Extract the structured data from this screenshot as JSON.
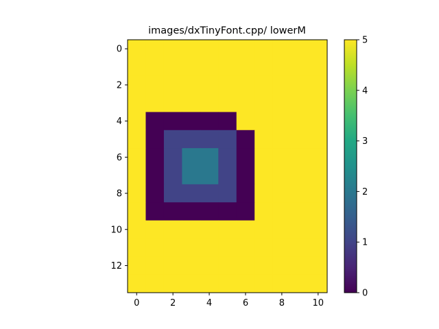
{
  "chart_data": {
    "type": "heatmap",
    "title": "images/dxTinyFont.cpp/ lowerM",
    "xlabel": "",
    "ylabel": "",
    "n_cols": 11,
    "n_rows": 14,
    "x_ticks": [
      0,
      2,
      4,
      6,
      8,
      10
    ],
    "y_ticks": [
      0,
      2,
      4,
      6,
      8,
      10,
      12
    ],
    "colorbar_ticks": [
      0,
      1,
      2,
      3,
      4,
      5
    ],
    "vmin": 0,
    "vmax": 5,
    "colormap": "viridis",
    "grid": false,
    "matrix": [
      [
        5,
        5,
        5,
        5,
        5,
        5,
        5,
        5,
        5,
        5,
        5
      ],
      [
        5,
        5,
        5,
        5,
        5,
        5,
        5,
        5,
        5,
        5,
        5
      ],
      [
        5,
        5,
        5,
        5,
        5,
        5,
        5,
        5,
        5,
        5,
        5
      ],
      [
        5,
        5,
        5,
        5,
        5,
        5,
        5,
        5,
        5,
        5,
        5
      ],
      [
        5,
        0,
        0,
        0,
        0,
        0,
        5,
        5,
        5,
        5,
        5
      ],
      [
        5,
        0,
        1,
        1,
        1,
        1,
        0,
        5,
        5,
        5,
        5
      ],
      [
        5,
        0,
        1,
        2,
        2,
        1,
        0,
        5,
        5,
        5,
        5
      ],
      [
        5,
        0,
        1,
        2,
        2,
        1,
        0,
        5,
        5,
        5,
        5
      ],
      [
        5,
        0,
        1,
        1,
        1,
        1,
        0,
        5,
        5,
        5,
        5
      ],
      [
        5,
        0,
        0,
        0,
        0,
        0,
        0,
        5,
        5,
        5,
        5
      ],
      [
        5,
        5,
        5,
        5,
        5,
        5,
        5,
        5,
        5,
        5,
        5
      ],
      [
        5,
        5,
        5,
        5,
        5,
        5,
        5,
        5,
        5,
        5,
        5
      ],
      [
        5,
        5,
        5,
        5,
        5,
        5,
        5,
        5,
        5,
        5,
        5
      ],
      [
        5,
        5,
        5,
        5,
        5,
        5,
        5,
        5,
        5,
        5,
        5
      ]
    ]
  }
}
